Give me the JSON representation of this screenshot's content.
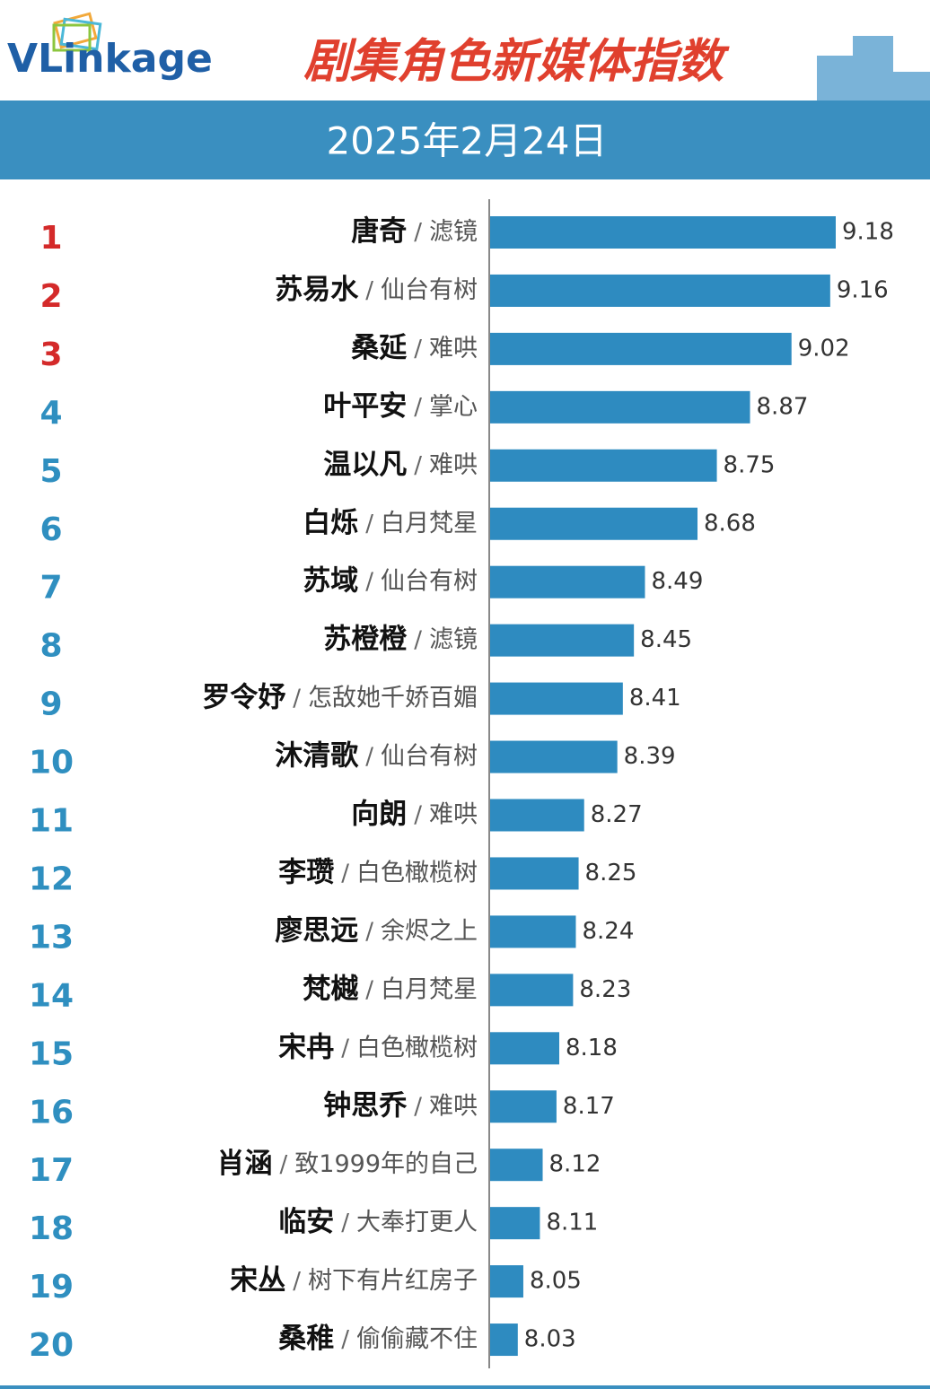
{
  "logo": "VLinkage",
  "chart_data": {
    "type": "bar",
    "title": "剧集角色新媒体指数",
    "subtitle": "2025年2月24日",
    "separator": "/",
    "ranks": [
      1,
      2,
      3,
      4,
      5,
      6,
      7,
      8,
      9,
      10,
      11,
      12,
      13,
      14,
      15,
      16,
      17,
      18,
      19,
      20
    ],
    "categories": [
      "唐奇",
      "苏易水",
      "桑延",
      "叶平安",
      "温以凡",
      "白烁",
      "苏域",
      "苏橙橙",
      "罗令妤",
      "沐清歌",
      "向朗",
      "李瓒",
      "廖思远",
      "梵樾",
      "宋冉",
      "钟思乔",
      "肖涵",
      "临安",
      "宋丛",
      "桑稚"
    ],
    "dramas": [
      "滤镜",
      "仙台有树",
      "难哄",
      "掌心",
      "难哄",
      "白月梵星",
      "仙台有树",
      "滤镜",
      "怎敌她千娇百媚",
      "仙台有树",
      "难哄",
      "白色橄榄树",
      "余烬之上",
      "白月梵星",
      "白色橄榄树",
      "难哄",
      "致1999年的自己",
      "大奉打更人",
      "树下有片红房子",
      "偷偷藏不住"
    ],
    "values": [
      9.18,
      9.16,
      9.02,
      8.87,
      8.75,
      8.68,
      8.49,
      8.45,
      8.41,
      8.39,
      8.27,
      8.25,
      8.24,
      8.23,
      8.18,
      8.17,
      8.12,
      8.11,
      8.05,
      8.03
    ],
    "xlim": [
      7.93,
      9.18
    ],
    "color": "#2e8bc0",
    "top_rank_color": "#d42a2a",
    "rank_color": "#2f8fc0"
  }
}
